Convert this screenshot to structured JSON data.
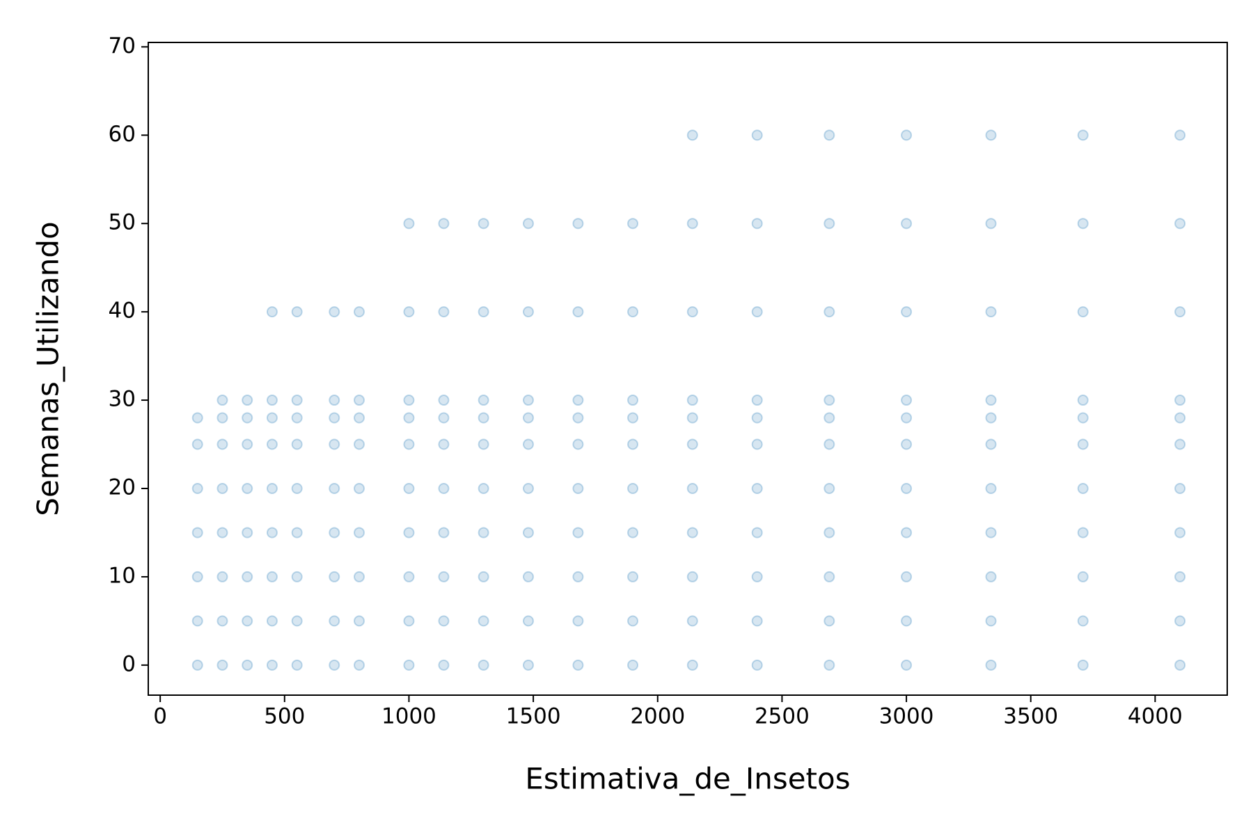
{
  "chart_data": {
    "type": "scatter",
    "x_label": "Estimativa_de_Insetos",
    "y_label": "Semanas_Utilizando",
    "color": "#1f77b4",
    "alpha": 0.18,
    "x": [
      150,
      150,
      150,
      150,
      150,
      150,
      150,
      250,
      250,
      250,
      250,
      250,
      250,
      250,
      250,
      350,
      350,
      350,
      350,
      350,
      350,
      350,
      350,
      450,
      450,
      450,
      450,
      450,
      450,
      450,
      450,
      450,
      550,
      550,
      550,
      550,
      550,
      550,
      550,
      550,
      550,
      700,
      700,
      700,
      700,
      700,
      700,
      700,
      700,
      700,
      800,
      800,
      800,
      800,
      800,
      800,
      800,
      800,
      800,
      1000,
      1000,
      1000,
      1000,
      1000,
      1000,
      1000,
      1000,
      1000,
      1000,
      1140,
      1140,
      1140,
      1140,
      1140,
      1140,
      1140,
      1140,
      1140,
      1140,
      1300,
      1300,
      1300,
      1300,
      1300,
      1300,
      1300,
      1300,
      1300,
      1300,
      1480,
      1480,
      1480,
      1480,
      1480,
      1480,
      1480,
      1480,
      1480,
      1480,
      1680,
      1680,
      1680,
      1680,
      1680,
      1680,
      1680,
      1680,
      1680,
      1680,
      1900,
      1900,
      1900,
      1900,
      1900,
      1900,
      1900,
      1900,
      1900,
      1900,
      2140,
      2140,
      2140,
      2140,
      2140,
      2140,
      2140,
      2140,
      2140,
      2140,
      2140,
      2400,
      2400,
      2400,
      2400,
      2400,
      2400,
      2400,
      2400,
      2400,
      2400,
      2400,
      2690,
      2690,
      2690,
      2690,
      2690,
      2690,
      2690,
      2690,
      2690,
      2690,
      2690,
      3000,
      3000,
      3000,
      3000,
      3000,
      3000,
      3000,
      3000,
      3000,
      3000,
      3000,
      3340,
      3340,
      3340,
      3340,
      3340,
      3340,
      3340,
      3340,
      3340,
      3340,
      3340,
      3710,
      3710,
      3710,
      3710,
      3710,
      3710,
      3710,
      3710,
      3710,
      3710,
      3710,
      4100,
      4100,
      4100,
      4100,
      4100,
      4100,
      4100,
      4100,
      4100,
      4100,
      4100
    ],
    "values": [
      0,
      5,
      10,
      15,
      20,
      25,
      28,
      0,
      5,
      10,
      15,
      20,
      25,
      28,
      30,
      0,
      5,
      10,
      15,
      20,
      25,
      28,
      30,
      0,
      5,
      10,
      15,
      20,
      25,
      28,
      30,
      40,
      0,
      5,
      10,
      15,
      20,
      25,
      28,
      30,
      40,
      0,
      5,
      10,
      15,
      20,
      25,
      28,
      30,
      40,
      0,
      5,
      10,
      15,
      20,
      25,
      28,
      30,
      40,
      0,
      5,
      10,
      15,
      20,
      25,
      28,
      30,
      40,
      50,
      0,
      5,
      10,
      15,
      20,
      25,
      28,
      30,
      40,
      50,
      0,
      5,
      10,
      15,
      20,
      25,
      28,
      30,
      40,
      50,
      0,
      5,
      10,
      15,
      20,
      25,
      28,
      30,
      40,
      50,
      0,
      5,
      10,
      15,
      20,
      25,
      28,
      30,
      40,
      50,
      0,
      5,
      10,
      15,
      20,
      25,
      28,
      30,
      40,
      50,
      0,
      5,
      10,
      15,
      20,
      25,
      28,
      30,
      40,
      50,
      60,
      0,
      5,
      10,
      15,
      20,
      25,
      28,
      30,
      40,
      50,
      60,
      0,
      5,
      10,
      15,
      20,
      25,
      28,
      30,
      40,
      50,
      60,
      0,
      5,
      10,
      15,
      20,
      25,
      28,
      30,
      40,
      50,
      60,
      0,
      5,
      10,
      15,
      20,
      25,
      28,
      30,
      40,
      50,
      60,
      0,
      5,
      10,
      15,
      20,
      25,
      28,
      30,
      40,
      50,
      60,
      0,
      5,
      10,
      15,
      20,
      25,
      28,
      30,
      40,
      50,
      60
    ],
    "xlim": [
      -48,
      4290
    ],
    "ylim": [
      -3.4,
      70.5
    ],
    "xticks": [
      0,
      500,
      1000,
      1500,
      2000,
      2500,
      3000,
      3500,
      4000
    ],
    "yticks": [
      0,
      10,
      20,
      30,
      40,
      50,
      60,
      70
    ]
  }
}
